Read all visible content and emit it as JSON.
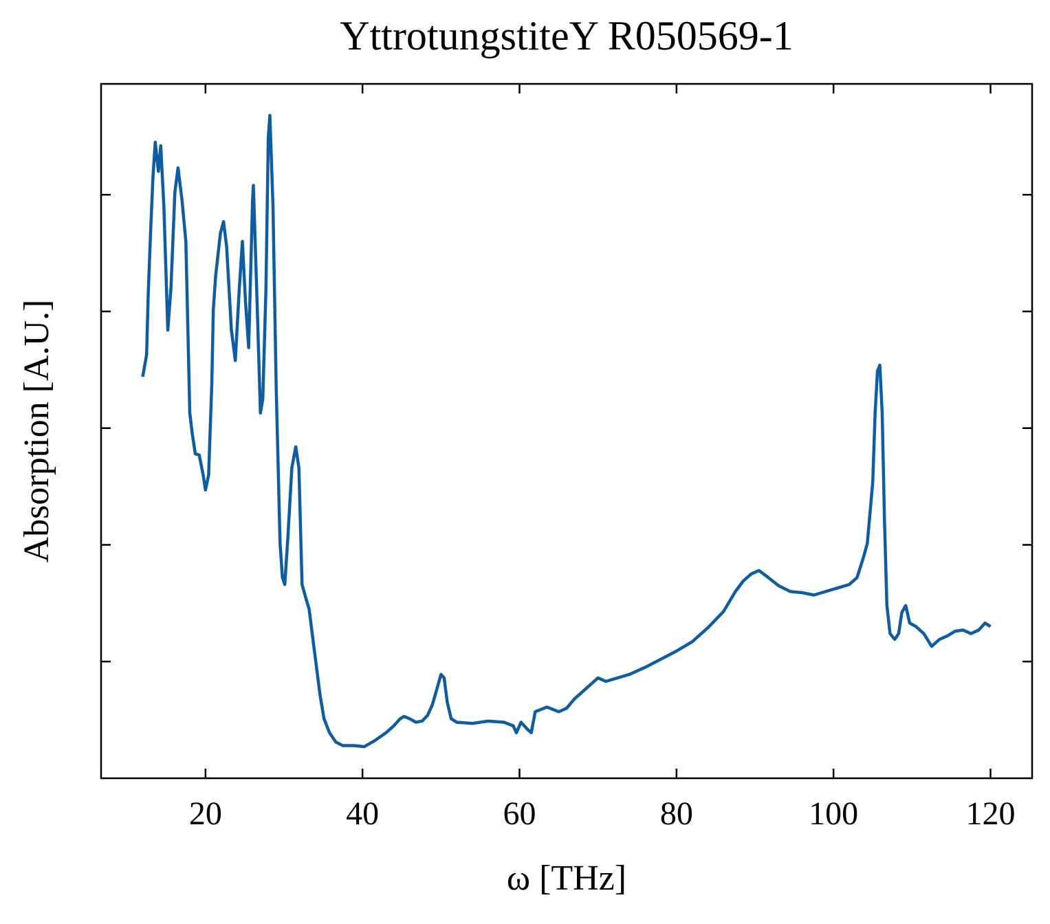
{
  "chart_data": {
    "type": "line",
    "title": "YttrotungstiteY R050569-1",
    "x_label": "ω [THz]",
    "y_label": "Absorption [A.U.]",
    "xlim": [
      6.7,
      125.3
    ],
    "xticks": [
      20,
      40,
      60,
      80,
      100,
      120
    ],
    "ylim": [
      0,
      5.95
    ],
    "yticks": [
      1,
      2,
      3,
      4,
      5
    ],
    "x": [
      12,
      12.5,
      12.7,
      13.0,
      13.3,
      13.6,
      14.0,
      14.3,
      14.7,
      15.2,
      15.6,
      16.1,
      16.5,
      17.0,
      17.5,
      18.0,
      18.3,
      18.7,
      19.2,
      19.7,
      20.0,
      20.4,
      20.8,
      21.0,
      21.3,
      21.9,
      22.3,
      22.7,
      23.3,
      23.8,
      24.3,
      24.7,
      25.1,
      25.5,
      26.0,
      26.1,
      26.6,
      27.0,
      27.3,
      27.7,
      28.0,
      28.2,
      28.6,
      29.0,
      29.5,
      29.8,
      30.1,
      30.5,
      31.0,
      31.5,
      31.9,
      32.3,
      32.8,
      33.2,
      33.8,
      34.6,
      35.1,
      35.8,
      36.6,
      37.5,
      39.0,
      40.2,
      41.5,
      43.0,
      44.0,
      44.8,
      45.3,
      46.0,
      46.8,
      47.6,
      48.3,
      48.9,
      49.5,
      50.0,
      50.4,
      50.8,
      51.3,
      52,
      54,
      56,
      58,
      59.2,
      59.6,
      60.2,
      61,
      61.5,
      62,
      63.5,
      65,
      66,
      67,
      68,
      69,
      70,
      71,
      72.5,
      74,
      76,
      78,
      80,
      82,
      84,
      86,
      87.5,
      88.5,
      89.5,
      90.5,
      91.5,
      93,
      94.5,
      96,
      97.5,
      99,
      100.5,
      102,
      103,
      103.8,
      104.3,
      104.7,
      105.0,
      105.3,
      105.6,
      105.9,
      106.2,
      106.5,
      106.8,
      107.2,
      107.8,
      108.3,
      108.7,
      109.2,
      109.7,
      110.5,
      111.5,
      112.5,
      113.5,
      114.5,
      115.5,
      116.5,
      117.5,
      118.5,
      119.3,
      120
    ],
    "series": [
      {
        "name": "YttrotungstiteY R050569-1",
        "color": "#0c5da5",
        "values": [
          3.44,
          3.63,
          4.14,
          4.67,
          5.14,
          5.45,
          5.2,
          5.42,
          4.9,
          3.84,
          4.2,
          5.02,
          5.23,
          4.96,
          4.6,
          3.13,
          2.96,
          2.78,
          2.77,
          2.6,
          2.47,
          2.6,
          3.37,
          4.02,
          4.31,
          4.67,
          4.77,
          4.55,
          3.84,
          3.58,
          4.19,
          4.6,
          4.08,
          3.69,
          4.96,
          5.08,
          4.02,
          3.13,
          3.25,
          4.19,
          5.49,
          5.68,
          4.9,
          3.37,
          2.01,
          1.72,
          1.66,
          2.07,
          2.66,
          2.84,
          2.66,
          1.66,
          1.54,
          1.45,
          1.13,
          0.71,
          0.51,
          0.39,
          0.31,
          0.28,
          0.28,
          0.27,
          0.32,
          0.39,
          0.45,
          0.51,
          0.53,
          0.51,
          0.48,
          0.49,
          0.54,
          0.63,
          0.77,
          0.89,
          0.86,
          0.65,
          0.51,
          0.48,
          0.47,
          0.49,
          0.48,
          0.45,
          0.39,
          0.48,
          0.42,
          0.39,
          0.57,
          0.61,
          0.57,
          0.6,
          0.68,
          0.74,
          0.8,
          0.86,
          0.83,
          0.86,
          0.89,
          0.95,
          1.02,
          1.09,
          1.17,
          1.29,
          1.43,
          1.6,
          1.69,
          1.75,
          1.78,
          1.73,
          1.65,
          1.6,
          1.59,
          1.57,
          1.6,
          1.63,
          1.66,
          1.72,
          1.89,
          2.01,
          2.31,
          2.54,
          3.13,
          3.49,
          3.54,
          3.13,
          2.19,
          1.48,
          1.24,
          1.19,
          1.24,
          1.42,
          1.48,
          1.33,
          1.3,
          1.24,
          1.13,
          1.19,
          1.22,
          1.26,
          1.27,
          1.24,
          1.27,
          1.33,
          1.3
        ]
      }
    ]
  }
}
